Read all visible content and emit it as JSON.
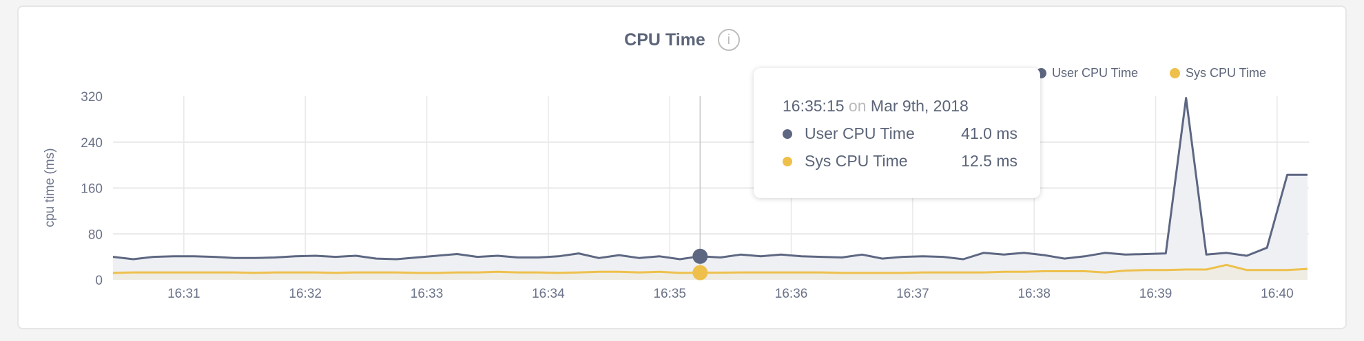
{
  "title": "CPU Time",
  "info_icon": "info-circle-icon",
  "colors": {
    "user": "#5d6782",
    "sys": "#eec04b",
    "user_fill": "#eff0f3",
    "sys_fill": "#efece3",
    "grid": "#e8e8e8"
  },
  "tooltip": {
    "time": "16:35:15",
    "on": "on",
    "date": "Mar 9th, 2018",
    "rows": [
      {
        "label": "User CPU Time",
        "value": "41.0 ms"
      },
      {
        "label": "Sys CPU Time",
        "value": "12.5 ms"
      }
    ]
  },
  "chart_data": {
    "type": "area",
    "title": "CPU Time",
    "ylabel": "cpu time (ms)",
    "xlabel": "",
    "ylim": [
      0,
      320
    ],
    "yticks": [
      "0",
      "80",
      "160",
      "240",
      "320"
    ],
    "xticks": [
      "16:31",
      "16:32",
      "16:33",
      "16:34",
      "16:35",
      "16:36",
      "16:37",
      "16:38",
      "16:39",
      "16:40"
    ],
    "grid": true,
    "legend": "top-right",
    "hover_index": 29,
    "x": [
      "16:30:25",
      "16:30:35",
      "16:30:45",
      "16:30:55",
      "16:31:05",
      "16:31:15",
      "16:31:25",
      "16:31:35",
      "16:31:45",
      "16:31:55",
      "16:32:05",
      "16:32:15",
      "16:32:25",
      "16:32:35",
      "16:32:45",
      "16:32:55",
      "16:33:05",
      "16:33:15",
      "16:33:25",
      "16:33:35",
      "16:33:45",
      "16:33:55",
      "16:34:05",
      "16:34:15",
      "16:34:25",
      "16:34:35",
      "16:34:45",
      "16:34:55",
      "16:35:05",
      "16:35:15",
      "16:35:25",
      "16:35:35",
      "16:35:45",
      "16:35:55",
      "16:36:05",
      "16:36:15",
      "16:36:25",
      "16:36:35",
      "16:36:45",
      "16:36:55",
      "16:37:05",
      "16:37:15",
      "16:37:25",
      "16:37:35",
      "16:37:45",
      "16:37:55",
      "16:38:05",
      "16:38:15",
      "16:38:25",
      "16:38:35",
      "16:38:45",
      "16:38:55",
      "16:39:05",
      "16:39:15",
      "16:39:25",
      "16:39:35",
      "16:39:45",
      "16:39:55",
      "16:40:05",
      "16:40:15"
    ],
    "series": [
      {
        "name": "User CPU Time",
        "values": [
          40,
          36,
          40,
          41,
          41,
          40,
          38,
          38,
          39,
          41,
          42,
          40,
          42,
          37,
          36,
          39,
          42,
          45,
          40,
          42,
          39,
          39,
          41,
          46,
          38,
          43,
          38,
          41,
          36,
          41,
          39,
          44,
          41,
          44,
          41,
          40,
          39,
          44,
          37,
          40,
          41,
          40,
          36,
          47,
          44,
          47,
          43,
          37,
          41,
          47,
          44,
          45,
          46,
          317,
          44,
          47,
          42,
          56,
          183,
          183
        ]
      },
      {
        "name": "Sys CPU Time",
        "values": [
          12,
          13,
          13,
          13,
          13,
          13,
          13,
          12,
          13,
          13,
          13,
          12,
          13,
          13,
          13,
          12,
          12,
          13,
          13,
          14,
          13,
          13,
          12,
          13,
          14,
          14,
          13,
          14,
          12,
          12.5,
          12.5,
          13,
          13,
          13,
          13,
          13,
          12,
          12,
          12,
          12,
          13,
          13,
          13,
          13,
          14,
          14,
          15,
          15,
          15,
          13,
          16,
          17,
          17,
          18,
          18,
          26,
          17,
          17,
          17,
          19
        ]
      }
    ]
  }
}
